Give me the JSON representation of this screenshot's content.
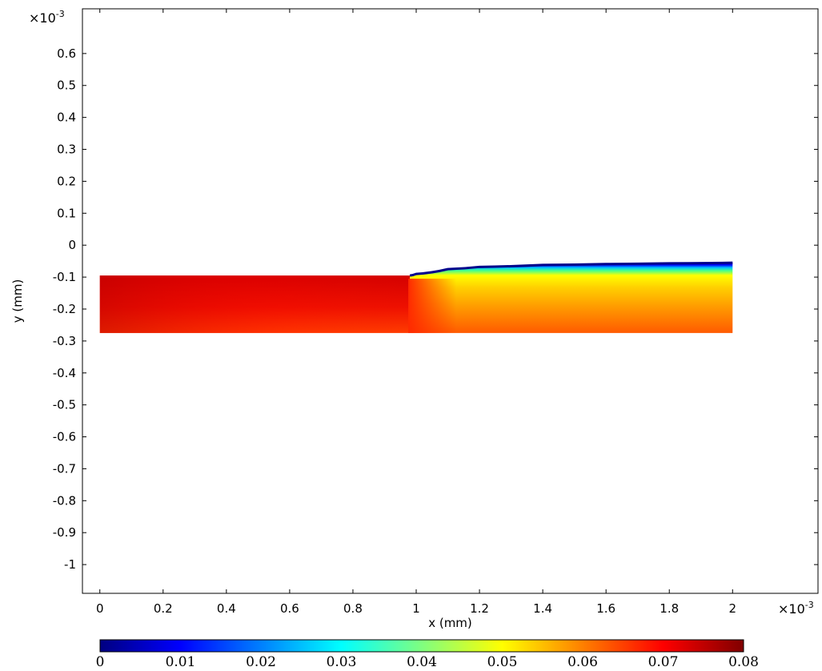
{
  "chart_data": {
    "type": "heatmap",
    "xlabel": "x (mm)",
    "ylabel": "y (mm)",
    "x_exponent": "×10",
    "x_exponent_power": "-3",
    "y_exponent": "×10",
    "y_exponent_power": "-3",
    "xlim": [
      -0.055,
      2.27
    ],
    "ylim": [
      -1.09,
      0.74
    ],
    "x_ticks": [
      "0",
      "0.2",
      "0.4",
      "0.6",
      "0.8",
      "1",
      "1.2",
      "1.4",
      "1.6",
      "1.8",
      "2"
    ],
    "x_tick_values": [
      0,
      0.2,
      0.4,
      0.6,
      0.8,
      1.0,
      1.2,
      1.4,
      1.6,
      1.8,
      2.0
    ],
    "y_ticks": [
      "0.6",
      "0.5",
      "0.4",
      "0.3",
      "0.2",
      "0.1",
      "0",
      "-0.1",
      "-0.2",
      "-0.3",
      "-0.4",
      "-0.5",
      "-0.6",
      "-0.7",
      "-0.8",
      "-0.9",
      "-1"
    ],
    "y_tick_values": [
      0.6,
      0.5,
      0.4,
      0.3,
      0.2,
      0.1,
      0,
      -0.1,
      -0.2,
      -0.3,
      -0.4,
      -0.5,
      -0.6,
      -0.7,
      -0.8,
      -0.9,
      -1.0
    ],
    "colorbar": {
      "colormap": "jet",
      "range": [
        0,
        0.08
      ],
      "ticks": [
        "0",
        "0.01",
        "0.02",
        "0.03",
        "0.04",
        "0.05",
        "0.06",
        "0.07",
        "0.08"
      ],
      "tick_values": [
        0,
        0.01,
        0.02,
        0.03,
        0.04,
        0.05,
        0.06,
        0.07,
        0.08
      ]
    },
    "domain": {
      "x_range": [
        0,
        2.0
      ],
      "bottom_y": -0.275,
      "left_top_y": -0.095,
      "top_boundary": [
        [
          0.98,
          -0.095
        ],
        [
          1.0,
          -0.09
        ],
        [
          1.1,
          -0.075
        ],
        [
          1.2,
          -0.068
        ],
        [
          1.4,
          -0.062
        ],
        [
          1.6,
          -0.059
        ],
        [
          1.8,
          -0.057
        ],
        [
          2.0,
          -0.055
        ]
      ],
      "value_left_top": 0.072,
      "value_left_bottom": 0.066,
      "value_right_bulk": 0.055,
      "value_right_surface": 0.0
    },
    "grid": false,
    "legend": "colorbar-bottom"
  }
}
